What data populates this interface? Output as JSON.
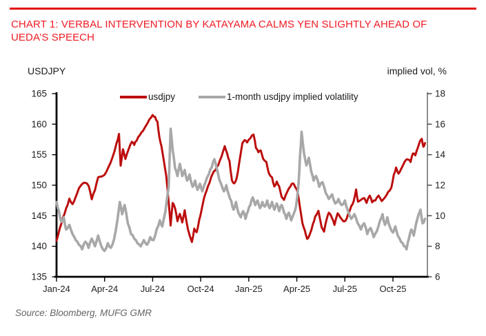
{
  "title": "CHART 1: VERBAL INTERVENTION BY KATAYAMA CALMS YEN SLIGHTLY AHEAD OF UEDA’S SPEECH",
  "axes": {
    "left_title": "USDJPY",
    "right_title": "implied vol, %"
  },
  "legend": [
    {
      "label": "usdjpy"
    },
    {
      "label": "1-month usdjpy implied volatility"
    }
  ],
  "source": "Source: Bloomberg, MUFG GMR",
  "colors": {
    "rule_red": "#e30b13",
    "title_red": "#ee1b24",
    "series_red": "#bc0d0d",
    "series_gray": "#a8a8a8",
    "axis_black": "#000000",
    "right_axis_gray": "#7f7f7f",
    "tick_text": "#212121",
    "source_gray": "#646464"
  },
  "chart_data": {
    "type": "line",
    "title": "CHART 1: VERBAL INTERVENTION BY KATAYAMA CALMS YEN SLIGHTLY AHEAD OF UEDA’S SPEECH",
    "x_unit": "months since Jan-2024",
    "x_ticks": [
      {
        "m": 0,
        "label": "Jan-24"
      },
      {
        "m": 3,
        "label": "Apr-24"
      },
      {
        "m": 6,
        "label": "Jul-24"
      },
      {
        "m": 9,
        "label": "Oct-24"
      },
      {
        "m": 12,
        "label": "Jan-25"
      },
      {
        "m": 15,
        "label": "Apr-25"
      },
      {
        "m": 18,
        "label": "Jul-25"
      },
      {
        "m": 21,
        "label": "Oct-25"
      }
    ],
    "x_range_months": [
      0,
      23.15
    ],
    "left_axis": {
      "title": "USDJPY",
      "min": 135,
      "max": 165,
      "ticks": [
        165,
        160,
        155,
        150,
        145,
        140,
        135
      ]
    },
    "right_axis": {
      "title": "implied vol, %",
      "min": 6,
      "max": 18,
      "ticks": [
        18,
        16,
        14,
        12,
        10,
        8,
        6
      ]
    },
    "grid": false,
    "legend_position": "top-center",
    "series": [
      {
        "name": "usdjpy",
        "axis": "left",
        "color": "#bc0d0d",
        "width": 3,
        "points": [
          [
            0.0,
            140.9
          ],
          [
            0.2,
            142.9
          ],
          [
            0.4,
            144.7
          ],
          [
            0.6,
            146.2
          ],
          [
            0.8,
            147.8
          ],
          [
            1.0,
            146.9
          ],
          [
            1.2,
            148.1
          ],
          [
            1.4,
            149.5
          ],
          [
            1.6,
            150.2
          ],
          [
            1.8,
            150.4
          ],
          [
            2.0,
            149.9
          ],
          [
            2.2,
            147.7
          ],
          [
            2.4,
            149.2
          ],
          [
            2.6,
            151.3
          ],
          [
            2.8,
            151.4
          ],
          [
            3.0,
            151.7
          ],
          [
            3.25,
            153.0
          ],
          [
            3.5,
            154.6
          ],
          [
            3.75,
            156.9
          ],
          [
            3.9,
            158.4
          ],
          [
            4.0,
            153.2
          ],
          [
            4.15,
            155.9
          ],
          [
            4.3,
            154.3
          ],
          [
            4.5,
            155.9
          ],
          [
            4.7,
            157.1
          ],
          [
            4.85,
            156.6
          ],
          [
            5.0,
            157.3
          ],
          [
            5.2,
            158.2
          ],
          [
            5.4,
            158.9
          ],
          [
            5.6,
            159.8
          ],
          [
            5.8,
            160.8
          ],
          [
            6.0,
            161.5
          ],
          [
            6.15,
            161.2
          ],
          [
            6.3,
            160.4
          ],
          [
            6.42,
            157.9
          ],
          [
            6.55,
            156.4
          ],
          [
            6.7,
            154.0
          ],
          [
            6.85,
            151.5
          ],
          [
            7.0,
            147.2
          ],
          [
            7.12,
            143.4
          ],
          [
            7.25,
            147.1
          ],
          [
            7.4,
            146.2
          ],
          [
            7.55,
            144.1
          ],
          [
            7.7,
            145.3
          ],
          [
            7.85,
            143.9
          ],
          [
            8.0,
            145.9
          ],
          [
            8.2,
            142.8
          ],
          [
            8.45,
            140.7
          ],
          [
            8.6,
            142.9
          ],
          [
            8.75,
            142.3
          ],
          [
            8.9,
            144.2
          ],
          [
            9.05,
            145.9
          ],
          [
            9.2,
            147.8
          ],
          [
            9.35,
            149.0
          ],
          [
            9.55,
            150.4
          ],
          [
            9.75,
            151.9
          ],
          [
            9.9,
            152.4
          ],
          [
            10.1,
            153.3
          ],
          [
            10.3,
            154.7
          ],
          [
            10.5,
            156.4
          ],
          [
            10.65,
            155.2
          ],
          [
            10.8,
            153.9
          ],
          [
            10.95,
            150.8
          ],
          [
            11.1,
            150.3
          ],
          [
            11.25,
            151.2
          ],
          [
            11.4,
            153.6
          ],
          [
            11.6,
            156.9
          ],
          [
            11.75,
            157.4
          ],
          [
            11.9,
            157.0
          ],
          [
            12.1,
            157.7
          ],
          [
            12.3,
            158.3
          ],
          [
            12.45,
            156.1
          ],
          [
            12.6,
            155.4
          ],
          [
            12.75,
            155.7
          ],
          [
            12.9,
            154.3
          ],
          [
            13.1,
            153.8
          ],
          [
            13.25,
            152.0
          ],
          [
            13.45,
            151.3
          ],
          [
            13.6,
            149.8
          ],
          [
            13.75,
            150.6
          ],
          [
            13.9,
            149.8
          ],
          [
            14.05,
            148.1
          ],
          [
            14.2,
            147.6
          ],
          [
            14.4,
            148.9
          ],
          [
            14.6,
            149.8
          ],
          [
            14.75,
            150.3
          ],
          [
            14.9,
            149.7
          ],
          [
            15.05,
            148.9
          ],
          [
            15.2,
            146.3
          ],
          [
            15.35,
            143.8
          ],
          [
            15.5,
            142.6
          ],
          [
            15.65,
            141.2
          ],
          [
            15.8,
            141.9
          ],
          [
            16.0,
            143.6
          ],
          [
            16.15,
            144.9
          ],
          [
            16.35,
            145.8
          ],
          [
            16.55,
            143.1
          ],
          [
            16.7,
            142.4
          ],
          [
            16.85,
            144.3
          ],
          [
            17.0,
            145.5
          ],
          [
            17.2,
            144.6
          ],
          [
            17.35,
            143.5
          ],
          [
            17.55,
            145.4
          ],
          [
            17.7,
            144.8
          ],
          [
            17.9,
            144.1
          ],
          [
            18.05,
            144.2
          ],
          [
            18.2,
            145.3
          ],
          [
            18.4,
            146.6
          ],
          [
            18.55,
            147.4
          ],
          [
            18.7,
            149.3
          ],
          [
            18.82,
            147.3
          ],
          [
            19.0,
            147.6
          ],
          [
            19.2,
            147.9
          ],
          [
            19.35,
            147.1
          ],
          [
            19.55,
            148.3
          ],
          [
            19.7,
            147.2
          ],
          [
            19.9,
            147.5
          ],
          [
            20.1,
            148.3
          ],
          [
            20.3,
            147.4
          ],
          [
            20.5,
            148.0
          ],
          [
            20.7,
            148.9
          ],
          [
            20.9,
            149.6
          ],
          [
            21.05,
            151.7
          ],
          [
            21.2,
            152.9
          ],
          [
            21.35,
            151.9
          ],
          [
            21.5,
            152.6
          ],
          [
            21.65,
            153.4
          ],
          [
            21.8,
            154.1
          ],
          [
            21.95,
            154.2
          ],
          [
            22.1,
            153.8
          ],
          [
            22.25,
            155.2
          ],
          [
            22.4,
            154.9
          ],
          [
            22.55,
            156.1
          ],
          [
            22.7,
            157.3
          ],
          [
            22.8,
            157.6
          ],
          [
            22.9,
            156.3
          ],
          [
            23.0,
            156.9
          ]
        ]
      },
      {
        "name": "1-month usdjpy implied volatility",
        "axis": "right",
        "color": "#a8a8a8",
        "width": 3.6,
        "points": [
          [
            0.0,
            10.9
          ],
          [
            0.15,
            10.3
          ],
          [
            0.3,
            9.6
          ],
          [
            0.45,
            9.9
          ],
          [
            0.6,
            9.1
          ],
          [
            0.8,
            9.4
          ],
          [
            1.0,
            8.8
          ],
          [
            1.2,
            8.4
          ],
          [
            1.4,
            8.1
          ],
          [
            1.6,
            7.8
          ],
          [
            1.8,
            8.3
          ],
          [
            2.0,
            7.9
          ],
          [
            2.2,
            8.5
          ],
          [
            2.4,
            8.0
          ],
          [
            2.6,
            8.7
          ],
          [
            2.8,
            8.0
          ],
          [
            3.0,
            7.7
          ],
          [
            3.2,
            8.2
          ],
          [
            3.4,
            7.9
          ],
          [
            3.6,
            8.5
          ],
          [
            3.8,
            9.7
          ],
          [
            3.95,
            10.9
          ],
          [
            4.1,
            10.1
          ],
          [
            4.25,
            10.7
          ],
          [
            4.45,
            9.5
          ],
          [
            4.65,
            8.8
          ],
          [
            4.85,
            8.5
          ],
          [
            5.05,
            8.2
          ],
          [
            5.25,
            8.0
          ],
          [
            5.45,
            8.4
          ],
          [
            5.65,
            8.1
          ],
          [
            5.85,
            8.6
          ],
          [
            6.05,
            8.4
          ],
          [
            6.25,
            9.1
          ],
          [
            6.45,
            9.7
          ],
          [
            6.6,
            9.3
          ],
          [
            6.8,
            10.3
          ],
          [
            7.0,
            11.9
          ],
          [
            7.12,
            15.7
          ],
          [
            7.25,
            14.3
          ],
          [
            7.4,
            13.1
          ],
          [
            7.55,
            12.6
          ],
          [
            7.7,
            13.4
          ],
          [
            7.85,
            12.6
          ],
          [
            8.0,
            13.0
          ],
          [
            8.15,
            12.3
          ],
          [
            8.3,
            12.7
          ],
          [
            8.5,
            11.9
          ],
          [
            8.65,
            12.3
          ],
          [
            8.8,
            11.7
          ],
          [
            8.95,
            12.1
          ],
          [
            9.1,
            11.6
          ],
          [
            9.3,
            12.2
          ],
          [
            9.5,
            12.7
          ],
          [
            9.7,
            13.2
          ],
          [
            9.85,
            13.7
          ],
          [
            10.0,
            13.1
          ],
          [
            10.15,
            12.4
          ],
          [
            10.3,
            12.0
          ],
          [
            10.45,
            11.6
          ],
          [
            10.6,
            12.0
          ],
          [
            10.75,
            11.4
          ],
          [
            10.9,
            11.0
          ],
          [
            11.05,
            10.4
          ],
          [
            11.2,
            10.9
          ],
          [
            11.35,
            10.2
          ],
          [
            11.5,
            9.9
          ],
          [
            11.65,
            10.3
          ],
          [
            11.8,
            9.8
          ],
          [
            11.95,
            10.3
          ],
          [
            12.1,
            10.7
          ],
          [
            12.25,
            11.2
          ],
          [
            12.4,
            10.7
          ],
          [
            12.55,
            11.0
          ],
          [
            12.7,
            10.5
          ],
          [
            12.85,
            10.9
          ],
          [
            13.0,
            10.6
          ],
          [
            13.15,
            11.0
          ],
          [
            13.3,
            10.5
          ],
          [
            13.45,
            10.9
          ],
          [
            13.6,
            10.4
          ],
          [
            13.75,
            10.8
          ],
          [
            13.9,
            10.3
          ],
          [
            14.05,
            10.7
          ],
          [
            14.2,
            10.2
          ],
          [
            14.35,
            9.8
          ],
          [
            14.5,
            10.2
          ],
          [
            14.65,
            9.7
          ],
          [
            14.8,
            10.1
          ],
          [
            14.95,
            10.6
          ],
          [
            15.1,
            12.0
          ],
          [
            15.2,
            13.9
          ],
          [
            15.3,
            15.5
          ],
          [
            15.45,
            14.1
          ],
          [
            15.6,
            13.3
          ],
          [
            15.75,
            13.8
          ],
          [
            15.9,
            12.9
          ],
          [
            16.05,
            12.3
          ],
          [
            16.2,
            12.6
          ],
          [
            16.4,
            11.9
          ],
          [
            16.6,
            12.2
          ],
          [
            16.8,
            11.5
          ],
          [
            17.0,
            11.1
          ],
          [
            17.2,
            11.4
          ],
          [
            17.4,
            10.8
          ],
          [
            17.6,
            11.1
          ],
          [
            17.8,
            10.7
          ],
          [
            18.0,
            11.0
          ],
          [
            18.2,
            10.3
          ],
          [
            18.4,
            9.8
          ],
          [
            18.6,
            10.1
          ],
          [
            18.8,
            9.5
          ],
          [
            19.0,
            9.1
          ],
          [
            19.2,
            9.5
          ],
          [
            19.4,
            8.8
          ],
          [
            19.6,
            9.2
          ],
          [
            19.8,
            8.6
          ],
          [
            20.0,
            9.0
          ],
          [
            20.2,
            9.7
          ],
          [
            20.35,
            10.1
          ],
          [
            20.5,
            9.4
          ],
          [
            20.65,
            9.9
          ],
          [
            20.8,
            9.3
          ],
          [
            21.0,
            8.9
          ],
          [
            21.15,
            9.3
          ],
          [
            21.3,
            8.7
          ],
          [
            21.5,
            8.3
          ],
          [
            21.7,
            8.0
          ],
          [
            21.85,
            7.8
          ],
          [
            22.0,
            8.5
          ],
          [
            22.15,
            9.1
          ],
          [
            22.3,
            8.7
          ],
          [
            22.45,
            9.5
          ],
          [
            22.6,
            10.1
          ],
          [
            22.72,
            10.4
          ],
          [
            22.85,
            9.5
          ],
          [
            23.0,
            9.8
          ]
        ]
      }
    ]
  }
}
